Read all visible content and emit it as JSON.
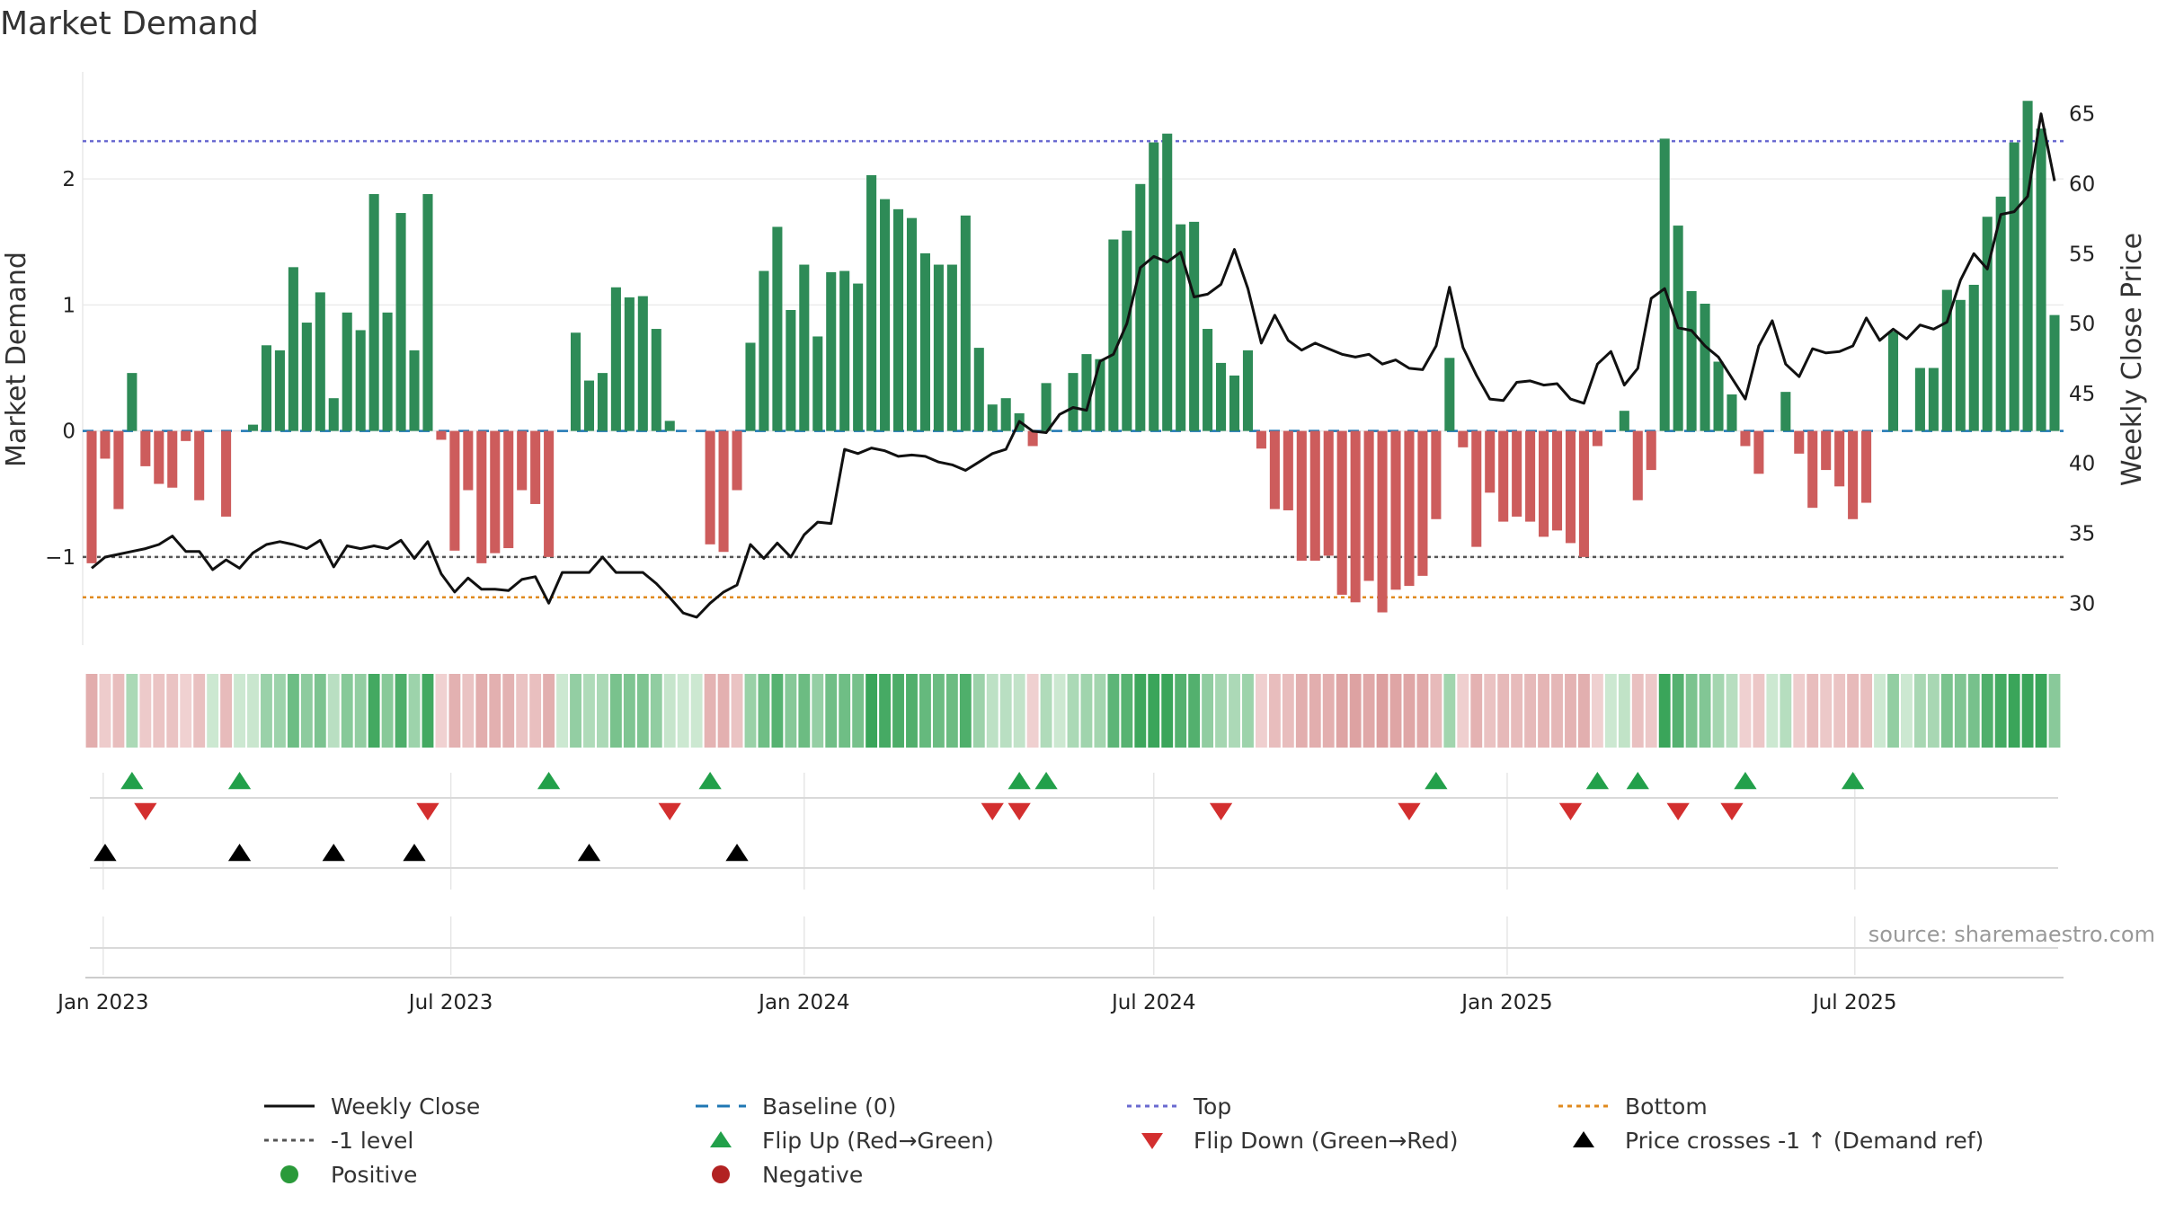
{
  "title": "Market Demand",
  "source": "source: sharemaestro.com",
  "colors": {
    "positive_bar": "#2e8b57",
    "negative_bar": "#cd5c5c",
    "close_line": "#111111",
    "baseline": "#1f77b4",
    "top": "#6a6ad0",
    "bottom": "#e08a1e",
    "minus_one": "#555555",
    "flip_up": "#22a04a",
    "flip_down": "#d32f2f",
    "cross": "#000000",
    "positive_dot": "#2a9a3a",
    "negative_dot": "#b22222"
  },
  "legend": [
    {
      "icon": "solid-line",
      "label": "Weekly Close"
    },
    {
      "icon": "dashed-line",
      "label": "Baseline (0)"
    },
    {
      "icon": "dotted-line",
      "label": "Top"
    },
    {
      "icon": "dotted-line",
      "label": "Bottom"
    },
    {
      "icon": "dotted-line",
      "label": "-1 level"
    },
    {
      "icon": "triangle-up",
      "label": "Flip Up (Red→Green)"
    },
    {
      "icon": "triangle-down",
      "label": "Flip Down (Green→Red)"
    },
    {
      "icon": "triangle-up",
      "label": "Price crosses -1 ↑ (Demand ref)"
    },
    {
      "icon": "circle",
      "label": "Positive"
    },
    {
      "icon": "circle",
      "label": "Negative"
    }
  ],
  "chart_data": {
    "type": "bar",
    "title": "Market Demand",
    "ylabel": "Market Demand",
    "y2label": "Weekly Close Price",
    "ylim": [
      -1.7,
      2.85
    ],
    "y2lim": [
      27,
      68
    ],
    "yticks": [
      "2",
      "1",
      "0",
      "−1"
    ],
    "y2ticks": [
      "65",
      "60",
      "55",
      "50",
      "45",
      "40",
      "35",
      "30"
    ],
    "xticks": [
      "Jan 2023",
      "Jul 2023",
      "Jan 2024",
      "Jul 2024",
      "Jan 2025",
      "Jul 2025"
    ],
    "xtick_dates": [
      "2023-01-01",
      "2023-07-01",
      "2024-01-01",
      "2024-07-01",
      "2025-01-01",
      "2025-07-01"
    ],
    "x_start": "2022-12-26",
    "week_days": 7,
    "reference_lines": {
      "baseline": 0,
      "top": 2.3,
      "minus_one": -1,
      "bottom": -1.32
    },
    "demand": [
      -1.05,
      -0.22,
      -0.62,
      0.46,
      -0.28,
      -0.42,
      -0.45,
      -0.08,
      -0.55,
      0.0,
      -0.68,
      0.0,
      0.05,
      0.68,
      0.64,
      1.3,
      0.86,
      1.1,
      0.26,
      0.94,
      0.8,
      1.88,
      0.94,
      1.73,
      0.64,
      1.88,
      -0.07,
      -0.95,
      -0.47,
      -1.05,
      -0.97,
      -0.93,
      -0.47,
      -0.58,
      -1.0,
      0.0,
      0.78,
      0.4,
      0.46,
      1.14,
      1.06,
      1.07,
      0.81,
      0.08,
      0.0,
      0.0,
      -0.9,
      -0.96,
      -0.47,
      0.7,
      1.27,
      1.62,
      0.96,
      1.32,
      0.75,
      1.26,
      1.27,
      1.17,
      2.03,
      1.84,
      1.76,
      1.69,
      1.41,
      1.32,
      1.32,
      1.71,
      0.66,
      0.21,
      0.26,
      0.14,
      -0.12,
      0.38,
      0.0,
      0.46,
      0.61,
      0.57,
      1.52,
      1.59,
      1.96,
      2.29,
      2.36,
      1.64,
      1.66,
      0.81,
      0.54,
      0.44,
      0.64,
      -0.14,
      -0.62,
      -0.63,
      -1.03,
      -1.03,
      -0.99,
      -1.3,
      -1.36,
      -1.19,
      -1.44,
      -1.26,
      -1.23,
      -1.15,
      -0.7,
      0.58,
      -0.13,
      -0.92,
      -0.49,
      -0.72,
      -0.68,
      -0.72,
      -0.84,
      -0.79,
      -0.89,
      -1.0,
      -0.12,
      0.0,
      0.16,
      -0.55,
      -0.31,
      2.32,
      1.63,
      1.11,
      1.01,
      0.55,
      0.29,
      -0.12,
      -0.34,
      0.0,
      0.31,
      -0.18,
      -0.61,
      -0.31,
      -0.44,
      -0.7,
      -0.57,
      0.0,
      0.79,
      0.0,
      0.5,
      0.5,
      1.12,
      1.04,
      1.16,
      1.7,
      1.86,
      2.29,
      2.62,
      2.4,
      0.92
    ],
    "close": [
      32.5,
      33.3,
      33.5,
      33.7,
      33.9,
      34.2,
      34.8,
      33.7,
      33.7,
      32.4,
      33.1,
      32.5,
      33.6,
      34.2,
      34.4,
      34.2,
      33.9,
      34.5,
      32.6,
      34.1,
      33.9,
      34.1,
      33.9,
      34.5,
      33.2,
      34.4,
      32.1,
      30.8,
      31.8,
      31.0,
      31.0,
      30.9,
      31.7,
      31.9,
      30.0,
      32.2,
      32.2,
      32.2,
      33.3,
      32.2,
      32.2,
      32.2,
      31.4,
      30.4,
      29.3,
      29.0,
      30.0,
      30.8,
      31.3,
      34.2,
      33.2,
      34.3,
      33.3,
      34.9,
      35.8,
      35.7,
      41.0,
      40.7,
      41.1,
      40.9,
      40.5,
      40.6,
      40.5,
      40.1,
      39.9,
      39.5,
      40.1,
      40.7,
      41.0,
      43.0,
      42.3,
      42.2,
      43.5,
      44.0,
      43.8,
      47.3,
      47.8,
      50.0,
      54.0,
      54.8,
      54.4,
      55.1,
      51.9,
      52.1,
      52.8,
      55.3,
      52.5,
      48.6,
      50.6,
      48.8,
      48.1,
      48.6,
      48.2,
      47.8,
      47.6,
      47.8,
      47.1,
      47.4,
      46.8,
      46.7,
      48.4,
      52.6,
      48.3,
      46.3,
      44.6,
      44.5,
      45.8,
      45.9,
      45.6,
      45.7,
      44.6,
      44.3,
      47.1,
      48.0,
      45.6,
      46.8,
      51.8,
      52.5,
      49.7,
      49.5,
      48.4,
      47.6,
      46.1,
      44.6,
      48.4,
      50.2,
      47.1,
      46.2,
      48.2,
      47.9,
      48.0,
      48.4,
      50.4,
      48.8,
      49.6,
      48.9,
      49.9,
      49.6,
      50.1,
      53.1,
      55.0,
      53.9,
      57.8,
      58.0,
      59.1,
      65.0,
      60.2
    ],
    "flip_up_weeks": [
      3,
      11,
      34,
      46,
      69,
      71,
      100,
      112,
      115,
      123,
      131
    ],
    "flip_down_weeks": [
      4,
      25,
      43,
      67,
      69,
      84,
      98,
      110,
      118,
      122
    ],
    "price_cross_weeks": [
      1,
      11,
      18,
      24,
      37,
      48
    ]
  }
}
